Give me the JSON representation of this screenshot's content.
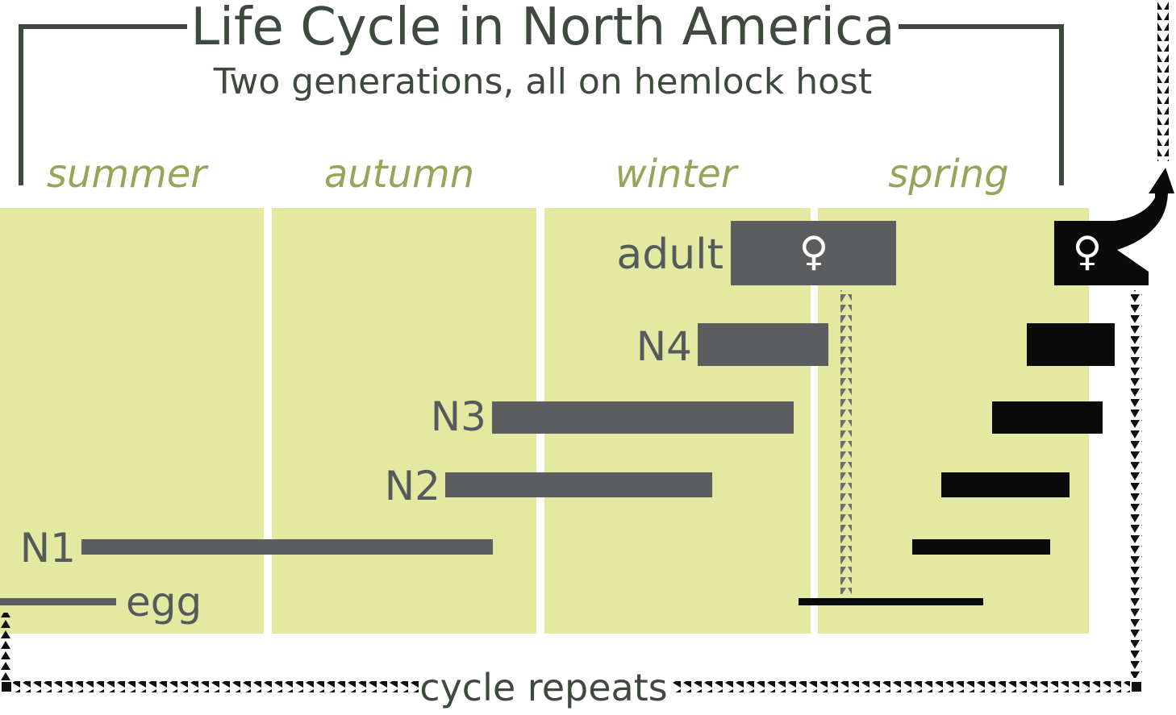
{
  "title": "Life Cycle in North America",
  "subtitle": "Two generations, all on hemlock host",
  "seasons": [
    "summer",
    "autumn",
    "winter",
    "spring"
  ],
  "stages": {
    "adult": "adult",
    "n4": "N4",
    "n3": "N3",
    "n2": "N2",
    "n1": "N1",
    "egg": "egg"
  },
  "female_symbol": "♀",
  "cycle_label": "cycle repeats",
  "colors": {
    "panel": "#e3e9a0",
    "gen1_bar": "#5b5d5e",
    "gen2_bar": "#0a0a0a",
    "title": "#3d4a3d",
    "season": "#9aa35a"
  }
}
